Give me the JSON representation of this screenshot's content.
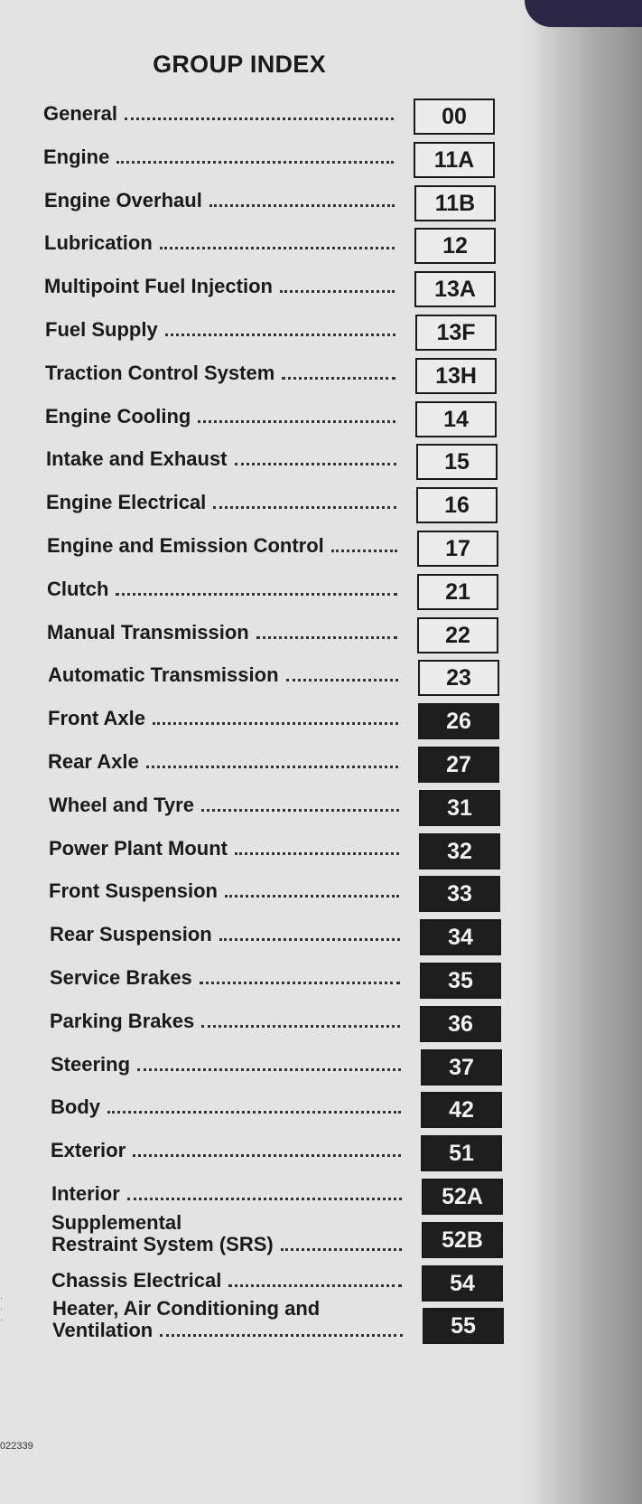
{
  "title": "GROUP INDEX",
  "items": [
    {
      "label": "General",
      "group": "00",
      "style": "light"
    },
    {
      "label": "Engine",
      "group": "11A",
      "style": "light"
    },
    {
      "label": "Engine Overhaul",
      "group": "11B",
      "style": "light"
    },
    {
      "label": "Lubrication",
      "group": "12",
      "style": "light"
    },
    {
      "label": "Multipoint Fuel Injection",
      "group": "13A",
      "style": "light"
    },
    {
      "label": "Fuel Supply",
      "group": "13F",
      "style": "light"
    },
    {
      "label": "Traction Control System",
      "group": "13H",
      "style": "light"
    },
    {
      "label": "Engine Cooling",
      "group": "14",
      "style": "light"
    },
    {
      "label": "Intake and Exhaust",
      "group": "15",
      "style": "light"
    },
    {
      "label": "Engine Electrical",
      "group": "16",
      "style": "light"
    },
    {
      "label": "Engine and Emission Control",
      "group": "17",
      "style": "light"
    },
    {
      "label": "Clutch",
      "group": "21",
      "style": "light"
    },
    {
      "label": "Manual Transmission",
      "group": "22",
      "style": "light"
    },
    {
      "label": "Automatic Transmission",
      "group": "23",
      "style": "light"
    },
    {
      "label": "Front Axle",
      "group": "26",
      "style": "dark"
    },
    {
      "label": "Rear Axle",
      "group": "27",
      "style": "dark"
    },
    {
      "label": "Wheel and Tyre",
      "group": "31",
      "style": "dark"
    },
    {
      "label": "Power Plant Mount",
      "group": "32",
      "style": "dark"
    },
    {
      "label": "Front Suspension",
      "group": "33",
      "style": "dark"
    },
    {
      "label": "Rear Suspension",
      "group": "34",
      "style": "dark"
    },
    {
      "label": "Service Brakes",
      "group": "35",
      "style": "dark"
    },
    {
      "label": "Parking Brakes",
      "group": "36",
      "style": "dark"
    },
    {
      "label": "Steering",
      "group": "37",
      "style": "dark"
    },
    {
      "label": "Body",
      "group": "42",
      "style": "dark"
    },
    {
      "label": "Exterior",
      "group": "51",
      "style": "dark"
    },
    {
      "label": "Interior",
      "group": "52A",
      "style": "dark"
    },
    {
      "label_line1": "Supplemental",
      "label": "Restraint System (SRS)",
      "group": "52B",
      "style": "dark"
    },
    {
      "label": "Chassis Electrical",
      "group": "54",
      "style": "dark"
    },
    {
      "label_line1": "Heater, Air Conditioning and",
      "label": "Ventilation",
      "group": "55",
      "style": "dark"
    }
  ],
  "footer_code": "022339"
}
